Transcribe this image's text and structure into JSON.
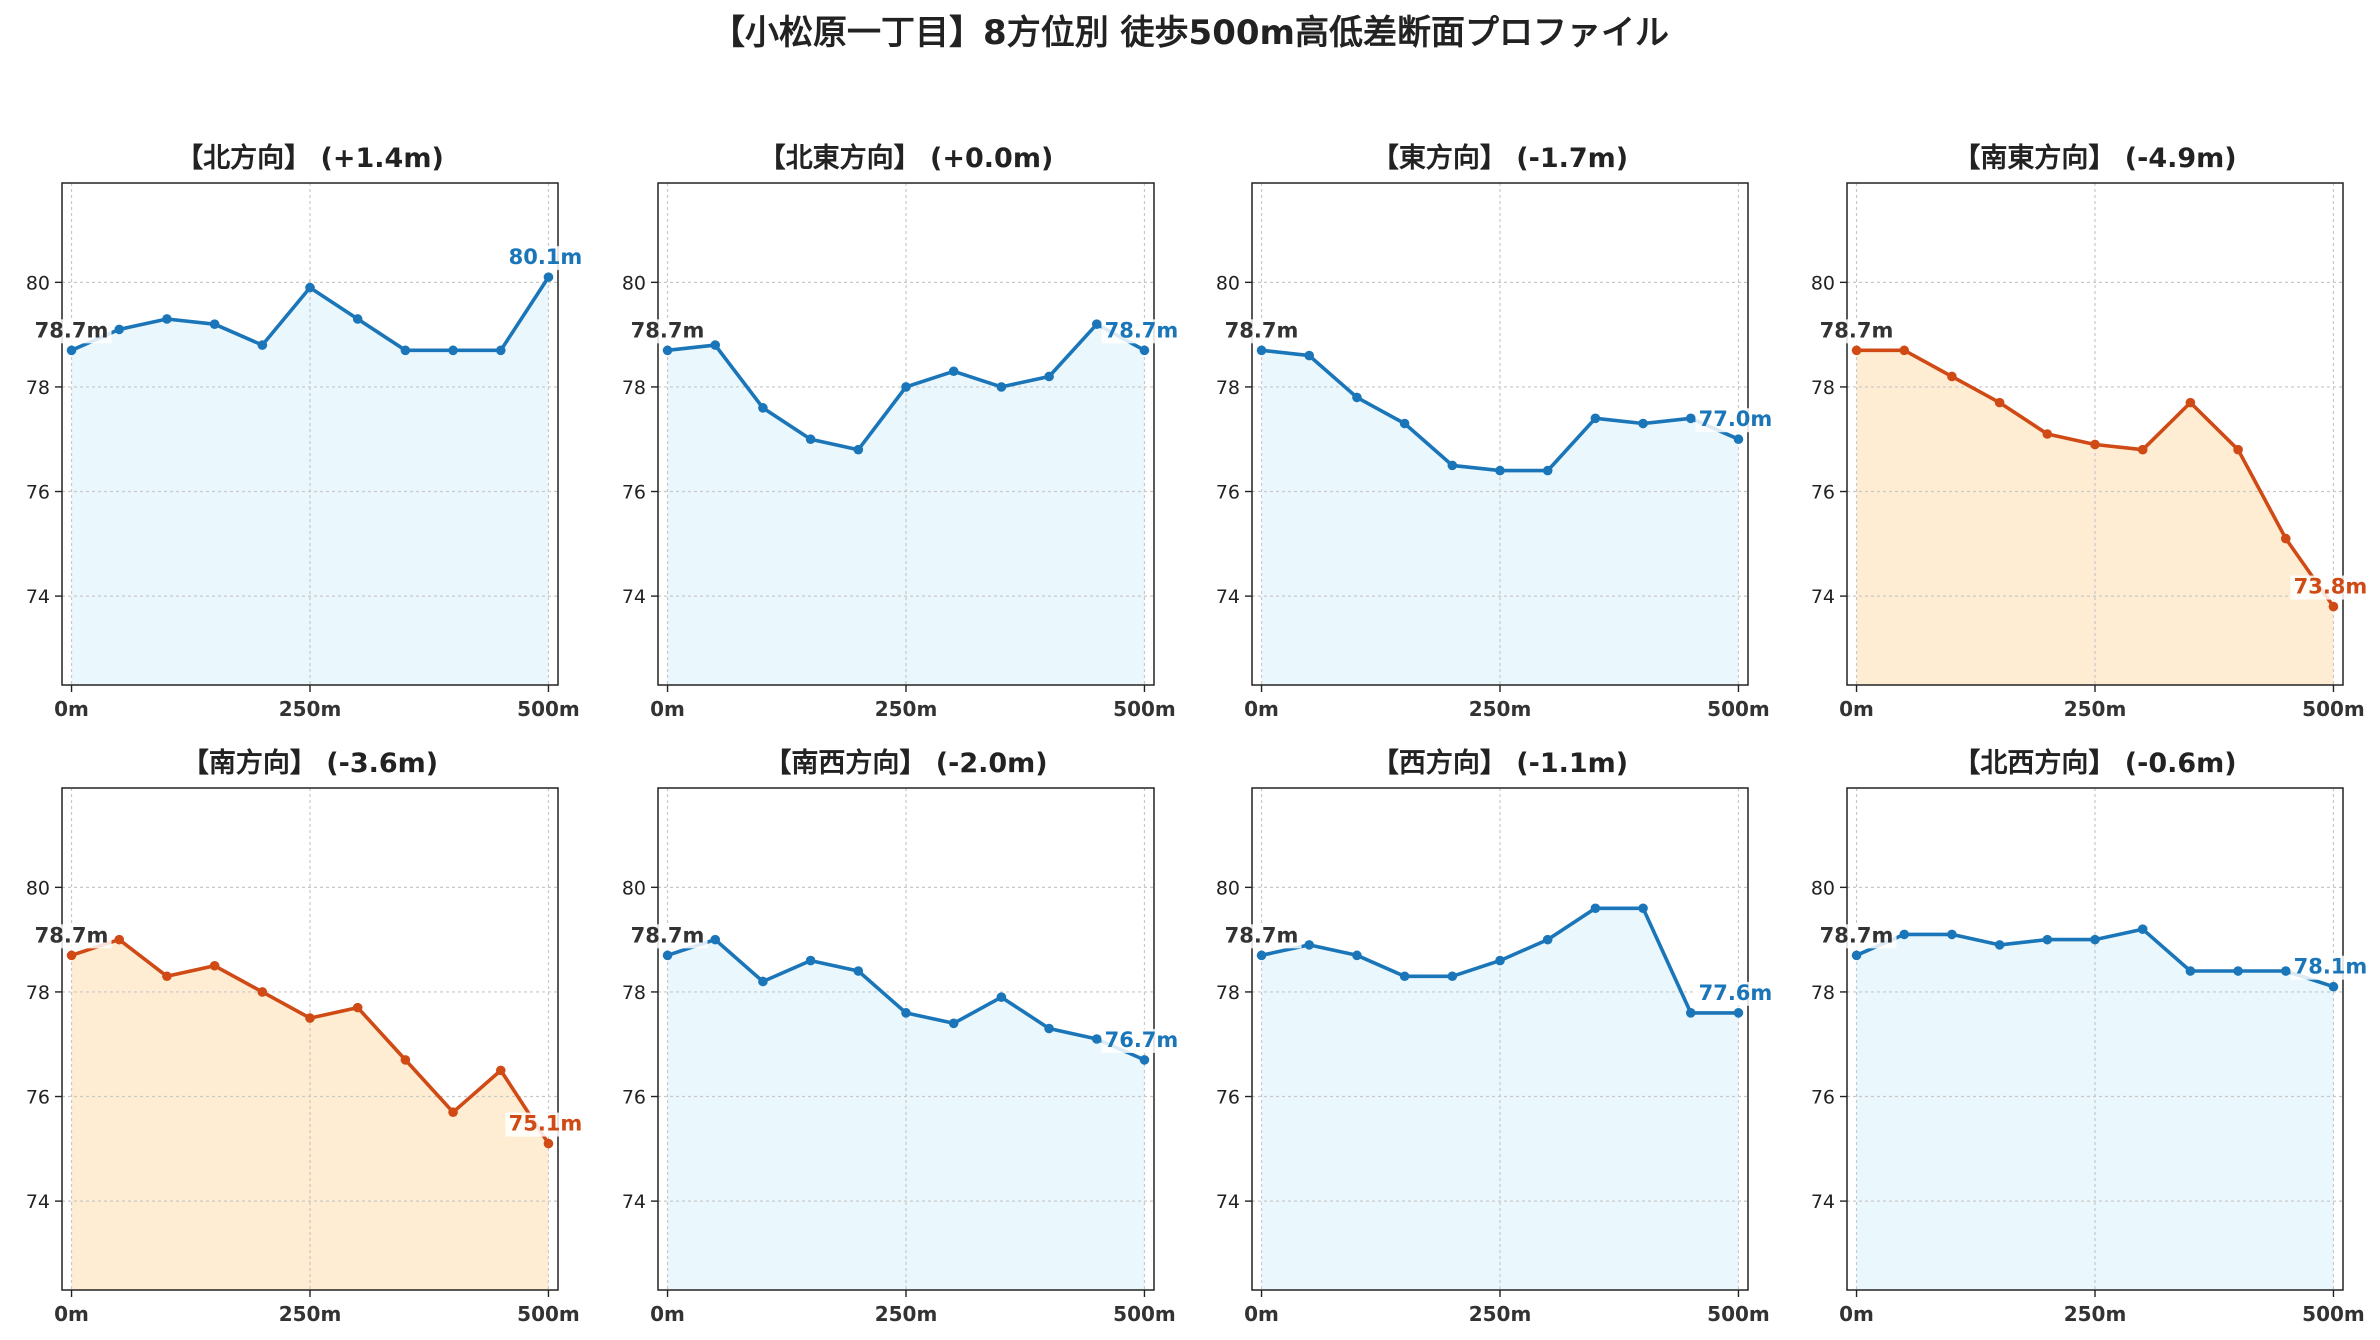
{
  "title": "【小松原一丁目】8方位別 徒歩500m高低差断面プロファイル",
  "colors": {
    "up_line": "#1a76b8",
    "up_fill": "#eaf7fc",
    "down_line": "#d04a16",
    "down_fill": "#feedd2",
    "start_label": "#333333"
  },
  "chart_data": [
    {
      "type": "line",
      "title": "【北方向】 (+1.4m)",
      "trend": "up",
      "x": [
        0,
        50,
        100,
        150,
        200,
        250,
        300,
        350,
        400,
        450,
        500
      ],
      "values": [
        78.7,
        79.1,
        79.3,
        79.2,
        78.8,
        79.9,
        79.3,
        78.7,
        78.7,
        78.7,
        80.1
      ],
      "start_label": "78.7m",
      "end_label": "80.1m",
      "xticks": [
        "0m",
        "250m",
        "500m"
      ],
      "yticks": [
        74,
        76,
        78,
        80
      ],
      "ylim": [
        72.3,
        81.9
      ],
      "xlim": [
        -10,
        510
      ],
      "grid": true
    },
    {
      "type": "line",
      "title": "【北東方向】 (+0.0m)",
      "trend": "up",
      "x": [
        0,
        50,
        100,
        150,
        200,
        250,
        300,
        350,
        400,
        450,
        500
      ],
      "values": [
        78.7,
        78.8,
        77.6,
        77.0,
        76.8,
        78.0,
        78.3,
        78.0,
        78.2,
        79.2,
        78.7
      ],
      "start_label": "78.7m",
      "end_label": "78.7m",
      "xticks": [
        "0m",
        "250m",
        "500m"
      ],
      "yticks": [
        74,
        76,
        78,
        80
      ],
      "ylim": [
        72.3,
        81.9
      ],
      "xlim": [
        -10,
        510
      ],
      "grid": true
    },
    {
      "type": "line",
      "title": "【東方向】 (-1.7m)",
      "trend": "up",
      "x": [
        0,
        50,
        100,
        150,
        200,
        250,
        300,
        350,
        400,
        450,
        500
      ],
      "values": [
        78.7,
        78.6,
        77.8,
        77.3,
        76.5,
        76.4,
        76.4,
        77.4,
        77.3,
        77.4,
        77.0
      ],
      "start_label": "78.7m",
      "end_label": "77.0m",
      "xticks": [
        "0m",
        "250m",
        "500m"
      ],
      "yticks": [
        74,
        76,
        78,
        80
      ],
      "ylim": [
        72.3,
        81.9
      ],
      "xlim": [
        -10,
        510
      ],
      "grid": true
    },
    {
      "type": "line",
      "title": "【南東方向】 (-4.9m)",
      "trend": "down",
      "x": [
        0,
        50,
        100,
        150,
        200,
        250,
        300,
        350,
        400,
        450,
        500
      ],
      "values": [
        78.7,
        78.7,
        78.2,
        77.7,
        77.1,
        76.9,
        76.8,
        77.7,
        76.8,
        75.1,
        73.8
      ],
      "start_label": "78.7m",
      "end_label": "73.8m",
      "xticks": [
        "0m",
        "250m",
        "500m"
      ],
      "yticks": [
        74,
        76,
        78,
        80
      ],
      "ylim": [
        72.3,
        81.9
      ],
      "xlim": [
        -10,
        510
      ],
      "grid": true
    },
    {
      "type": "line",
      "title": "【南方向】 (-3.6m)",
      "trend": "down",
      "x": [
        0,
        50,
        100,
        150,
        200,
        250,
        300,
        350,
        400,
        450,
        500
      ],
      "values": [
        78.7,
        79.0,
        78.3,
        78.5,
        78.0,
        77.5,
        77.7,
        76.7,
        75.7,
        76.5,
        75.1
      ],
      "start_label": "78.7m",
      "end_label": "75.1m",
      "xticks": [
        "0m",
        "250m",
        "500m"
      ],
      "yticks": [
        74,
        76,
        78,
        80
      ],
      "ylim": [
        72.3,
        81.9
      ],
      "xlim": [
        -10,
        510
      ],
      "grid": true
    },
    {
      "type": "line",
      "title": "【南西方向】 (-2.0m)",
      "trend": "up",
      "x": [
        0,
        50,
        100,
        150,
        200,
        250,
        300,
        350,
        400,
        450,
        500
      ],
      "values": [
        78.7,
        79.0,
        78.2,
        78.6,
        78.4,
        77.6,
        77.4,
        77.9,
        77.3,
        77.1,
        76.7
      ],
      "start_label": "78.7m",
      "end_label": "76.7m",
      "xticks": [
        "0m",
        "250m",
        "500m"
      ],
      "yticks": [
        74,
        76,
        78,
        80
      ],
      "ylim": [
        72.3,
        81.9
      ],
      "xlim": [
        -10,
        510
      ],
      "grid": true
    },
    {
      "type": "line",
      "title": "【西方向】 (-1.1m)",
      "trend": "up",
      "x": [
        0,
        50,
        100,
        150,
        200,
        250,
        300,
        350,
        400,
        450,
        500
      ],
      "values": [
        78.7,
        78.9,
        78.7,
        78.3,
        78.3,
        78.6,
        79.0,
        79.6,
        79.6,
        77.6,
        77.6
      ],
      "start_label": "78.7m",
      "end_label": "77.6m",
      "xticks": [
        "0m",
        "250m",
        "500m"
      ],
      "yticks": [
        74,
        76,
        78,
        80
      ],
      "ylim": [
        72.3,
        81.9
      ],
      "xlim": [
        -10,
        510
      ],
      "grid": true
    },
    {
      "type": "line",
      "title": "【北西方向】 (-0.6m)",
      "trend": "up",
      "x": [
        0,
        50,
        100,
        150,
        200,
        250,
        300,
        350,
        400,
        450,
        500
      ],
      "values": [
        78.7,
        79.1,
        79.1,
        78.9,
        79.0,
        79.0,
        79.2,
        78.4,
        78.4,
        78.4,
        78.1
      ],
      "start_label": "78.7m",
      "end_label": "78.1m",
      "xticks": [
        "0m",
        "250m",
        "500m"
      ],
      "yticks": [
        74,
        76,
        78,
        80
      ],
      "ylim": [
        72.3,
        81.9
      ],
      "xlim": [
        -10,
        510
      ],
      "grid": true
    }
  ]
}
